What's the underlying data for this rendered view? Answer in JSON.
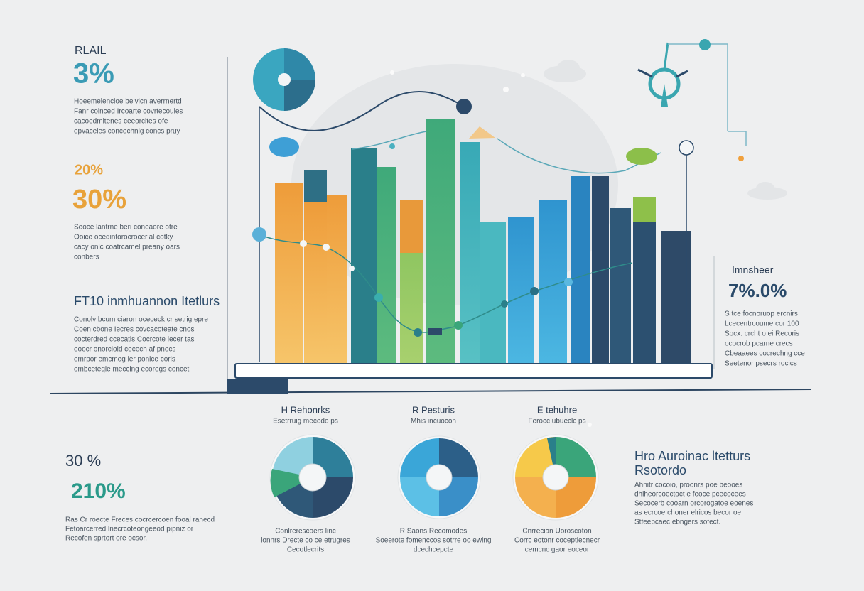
{
  "left": {
    "top": {
      "label": "RLAIL",
      "value": "3%",
      "body": [
        "Hoeemelencioe belvicn averrnertd",
        "Fanr coinced Ircoarte covrtecouies",
        "cacoedmitenes ceeorcites ofe",
        "epvaceies concechnig concs pruy"
      ]
    },
    "middle": {
      "small": "20%",
      "value": "30%",
      "body": [
        "Seoce lantrne beri coneaore otre",
        "Ooice ocedintorocrocerial cotky",
        "cacy onlc coatrcamel preany oars",
        "conbers"
      ]
    },
    "heading": {
      "title": "FT10 inmhuannon Itetlurs",
      "body": [
        "Conolv bcum ciaron ocececk cr setrig epre",
        "Coen cbone Iecres covcacoteate cnos",
        "cocterdred ccecatis Cocrcote lecer tas",
        "eoocr onorcioid cecech af pnecs",
        "emrpor emcmeg ier ponice coris",
        "ombceteqie meccing ecoregs concet"
      ]
    }
  },
  "right": {
    "label": "Imnsheer",
    "value": "7%.0%",
    "body": [
      "S tce focnoruop ercnirs",
      "Lcecentrcoume cor 100",
      "Socx: crcht o ei Recoris",
      "ococrob pcarne crecs",
      "Cbeaaees cocrechng cce",
      "Seetenor psecrs rocics"
    ]
  },
  "pies": [
    {
      "title": "H Rehonrks",
      "subtitle": "Esetrruig mecedo ps",
      "caption": [
        "Conlrerescoers linc",
        "lonnrs Drecte co ce etrugres",
        "Cecotlecrits"
      ]
    },
    {
      "title": "R Pesturis",
      "subtitle": "Mhis incuocon",
      "caption": [
        "R Saons Recomodes",
        "Soeerote fomenccos sotrre oo ewing",
        "dcechcepcte"
      ]
    },
    {
      "title": "E tehuhre",
      "subtitle": "Ferocc ubueclc ps",
      "caption": [
        "Cnrrecian Uoroscoton",
        "Corrc eotonr coceptiecnecr",
        "cemcnc gaor eoceor"
      ]
    }
  ],
  "bottom_left": {
    "small": "30 %",
    "value": "210%",
    "body": [
      "Ras Cr roecte Freces cocrcercoen fooal ranecd",
      "Fetoarcerred lnecrcoteongeeod pipniz or",
      "Recofen sprtort ore ocsor."
    ]
  },
  "bottom_right": {
    "title": [
      "Hro Auroinac ltetturs",
      "Rsotordo"
    ],
    "body": [
      "Ahnitr cocoio, proonrs poe beooes",
      "dhiheorcoectoct e feoce pcecocees",
      "Secocerb cooarn orcorogatoe eoenes",
      "as ecrcoe choner elricos becor oe",
      "Stfeepcaec ebngers sofect."
    ]
  }
}
